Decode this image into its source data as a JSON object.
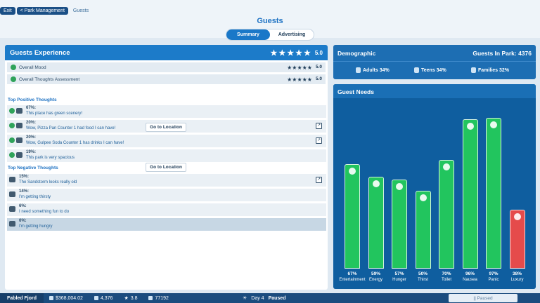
{
  "breadcrumb": {
    "exit": "Exit",
    "park_management": "< Park Management",
    "current": "Guests"
  },
  "page_title": "Guests",
  "tabs": [
    {
      "label": "Summary"
    },
    {
      "label": "Advertising"
    }
  ],
  "experience": {
    "title": "Guests Experience",
    "score": "5.0",
    "rows": [
      {
        "label": "Overall Mood",
        "score": "5.0"
      },
      {
        "label": "Overall Thoughts Assessment",
        "score": "5.0"
      }
    ]
  },
  "positive": {
    "label": "Top Positive Thoughts",
    "goto": "Go to Location",
    "items": [
      {
        "pct": "67%:",
        "text": "This place has green scenery!"
      },
      {
        "pct": "20%:",
        "text": "Wow, Pizza Pan Counter 1 had food I can have!"
      },
      {
        "pct": "20%:",
        "text": "Wow, Gulpee Soda Counter 1 has drinks I can have!"
      },
      {
        "pct": "19%:",
        "text": "This park is very spacious"
      }
    ]
  },
  "negative": {
    "label": "Top Negative Thoughts",
    "goto": "Go to Location",
    "items": [
      {
        "pct": "15%:",
        "text": "The Sandstorm looks really old"
      },
      {
        "pct": "14%:",
        "text": "I'm getting thirsty"
      },
      {
        "pct": "6%:",
        "text": "I need something fun to do"
      },
      {
        "pct": "6%:",
        "text": "I'm getting hungry"
      }
    ]
  },
  "demographic": {
    "title": "Demographic",
    "guests_in_park": "Guests In Park: 4376",
    "adults": "Adults 34%",
    "teens": "Teens 34%",
    "families": "Families 32%"
  },
  "needs": {
    "title": "Guest Needs",
    "items": [
      {
        "pct": "67%",
        "label": "Entertainment",
        "value": 67
      },
      {
        "pct": "59%",
        "label": "Energy",
        "value": 59
      },
      {
        "pct": "57%",
        "label": "Hunger",
        "value": 57
      },
      {
        "pct": "50%",
        "label": "Thirst",
        "value": 50
      },
      {
        "pct": "70%",
        "label": "Toilet",
        "value": 70
      },
      {
        "pct": "96%",
        "label": "Nausea",
        "value": 96
      },
      {
        "pct": "97%",
        "label": "Panic",
        "value": 97
      },
      {
        "pct": "38%",
        "label": "Luxury",
        "value": 38,
        "low": true
      }
    ]
  },
  "status": {
    "park_name": "Fabled Fjord",
    "money": "$368,004.02",
    "guests": "4,376",
    "rating": "3.8",
    "value": "77192",
    "day": "Day 4",
    "paused": "Paused",
    "paused_right": "|| Paused"
  },
  "colors": {
    "accent": "#1c7bc9",
    "bar_green": "#22c55e",
    "bar_red": "#e54b4b"
  }
}
